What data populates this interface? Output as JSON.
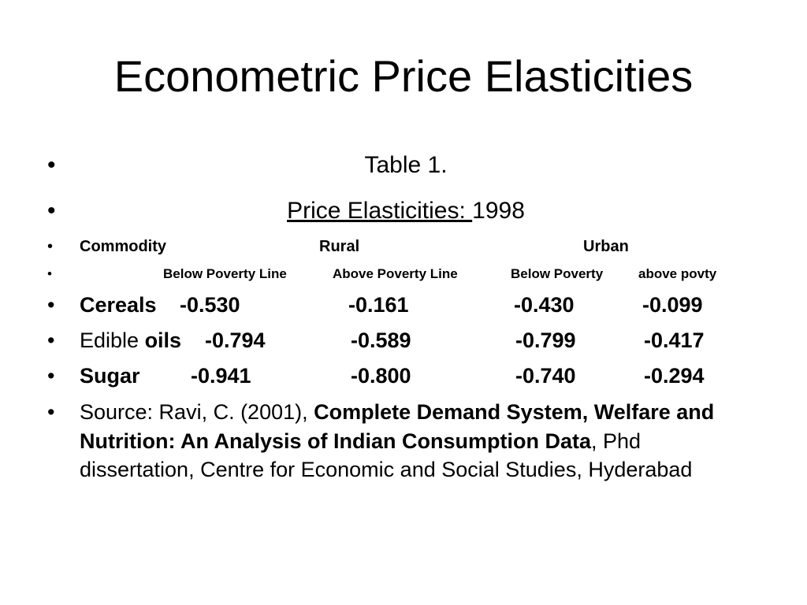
{
  "slide": {
    "title": "Econometric Price Elasticities"
  },
  "table_caption": {
    "line1": "Table 1.",
    "line2_underlined": "Price Elasticities: ",
    "line2_year": "1998"
  },
  "header": {
    "commodity": "Commodity",
    "rural": "Rural",
    "urban": "Urban"
  },
  "subheader": {
    "rural_below": "Below Poverty Line",
    "rural_above": "Above Poverty Line",
    "urban_below": "Below Poverty",
    "urban_above": "above povty"
  },
  "rows": [
    {
      "name": "Cereals",
      "rural_below": "-0.530",
      "rural_above": "-0.161",
      "urban_below": "-0.430",
      "urban_above": "-0.099"
    },
    {
      "name_plain": "Edible ",
      "name_bold": "oils",
      "rural_below": "-0.794",
      "rural_above": "-0.589",
      "urban_below": "-0.799",
      "urban_above": "-0.417"
    },
    {
      "name": "Sugar",
      "rural_below": "-0.941",
      "rural_above": "-0.800",
      "urban_below": "-0.740",
      "urban_above": "-0.294"
    }
  ],
  "source": {
    "prefix": "Source: Ravi, C. (2001), ",
    "title_bold": "Complete Demand System, Welfare and Nutrition: An Analysis of Indian Consumption Data",
    "suffix": ", Phd dissertation, Centre for Economic and Social Studies, Hyderabad"
  },
  "bullet_char": "•"
}
